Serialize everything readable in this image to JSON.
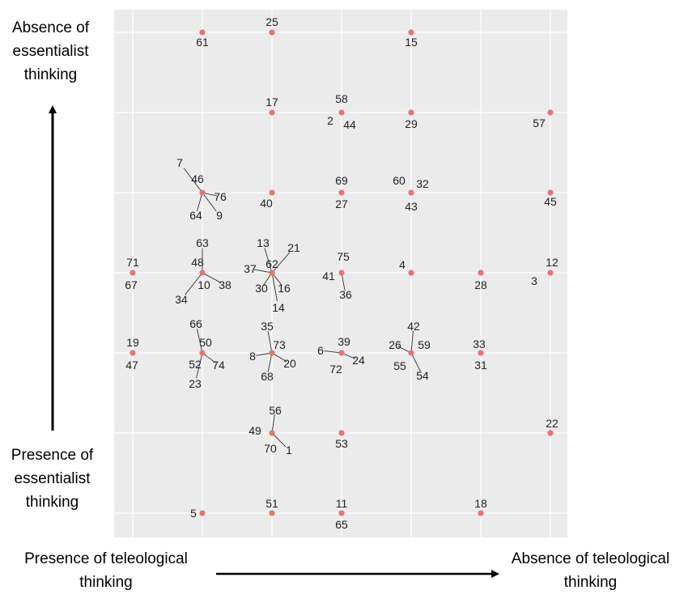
{
  "chart_data": {
    "type": "scatter",
    "grid": true,
    "xlim": [
      0.7,
      7.2
    ],
    "ylim": [
      0.7,
      7.3
    ],
    "axis_labels": {
      "y_top": [
        "Absence of",
        "essentialist",
        "thinking"
      ],
      "y_bottom": [
        "Presence of",
        "essentialist",
        "thinking"
      ],
      "x_left": [
        "Presence of teleological",
        "thinking"
      ],
      "x_right": [
        "Absence of teleological",
        "thinking"
      ]
    },
    "point_color": "#e8756b",
    "arrow_color": "#000000",
    "points": [
      {
        "x": 2,
        "y": 7,
        "labels": [
          {
            "text": "61",
            "dx": 0,
            "dy": 17
          }
        ]
      },
      {
        "x": 3,
        "y": 7,
        "labels": [
          {
            "text": "25",
            "dx": 0,
            "dy": -8
          }
        ]
      },
      {
        "x": 5,
        "y": 7,
        "labels": [
          {
            "text": "15",
            "dx": 0,
            "dy": 17
          }
        ]
      },
      {
        "x": 3,
        "y": 6,
        "labels": [
          {
            "text": "17",
            "dx": 0,
            "dy": -8
          }
        ]
      },
      {
        "x": 4,
        "y": 6,
        "labels": [
          {
            "text": "58",
            "dx": 0,
            "dy": -12
          },
          {
            "text": "2",
            "dx": -14,
            "dy": 15
          },
          {
            "text": "44",
            "dx": 10,
            "dy": 20
          }
        ]
      },
      {
        "x": 5,
        "y": 6,
        "labels": [
          {
            "text": "29",
            "dx": 0,
            "dy": 19
          }
        ]
      },
      {
        "x": 7,
        "y": 6,
        "labels": [
          {
            "text": "57",
            "dx": -14,
            "dy": 18
          }
        ]
      },
      {
        "x": 2,
        "y": 5,
        "labels": [
          {
            "text": "7",
            "dx": -28,
            "dy": -32
          },
          {
            "text": "46",
            "dx": -6,
            "dy": -12
          },
          {
            "text": "76",
            "dx": 22,
            "dy": 10
          },
          {
            "text": "64",
            "dx": -8,
            "dy": 33
          },
          {
            "text": "9",
            "dx": 21,
            "dy": 33
          }
        ]
      },
      {
        "x": 3,
        "y": 5,
        "labels": [
          {
            "text": "40",
            "dx": -7,
            "dy": 18
          }
        ]
      },
      {
        "x": 4,
        "y": 5,
        "labels": [
          {
            "text": "69",
            "dx": 0,
            "dy": -10
          },
          {
            "text": "27",
            "dx": 0,
            "dy": 19
          }
        ]
      },
      {
        "x": 5,
        "y": 5,
        "labels": [
          {
            "text": "60",
            "dx": -15,
            "dy": -10
          },
          {
            "text": "32",
            "dx": 14,
            "dy": -6
          },
          {
            "text": "43",
            "dx": 0,
            "dy": 22
          }
        ]
      },
      {
        "x": 7,
        "y": 5,
        "labels": [
          {
            "text": "45",
            "dx": 0,
            "dy": 16
          }
        ]
      },
      {
        "x": 1,
        "y": 4,
        "labels": [
          {
            "text": "71",
            "dx": 0,
            "dy": -8
          },
          {
            "text": "67",
            "dx": -2,
            "dy": 20
          }
        ]
      },
      {
        "x": 2,
        "y": 4,
        "labels": [
          {
            "text": "63",
            "dx": 0,
            "dy": -32
          },
          {
            "text": "48",
            "dx": -6,
            "dy": -8
          },
          {
            "text": "10",
            "dx": 2,
            "dy": 20
          },
          {
            "text": "38",
            "dx": 28,
            "dy": 20
          },
          {
            "text": "34",
            "dx": -26,
            "dy": 38
          }
        ]
      },
      {
        "x": 3,
        "y": 4,
        "labels": [
          {
            "text": "13",
            "dx": -11,
            "dy": -32
          },
          {
            "text": "21",
            "dx": 27,
            "dy": -26
          },
          {
            "text": "37",
            "dx": -27,
            "dy": 0
          },
          {
            "text": "62",
            "dx": 0,
            "dy": -6
          },
          {
            "text": "30",
            "dx": -13,
            "dy": 24
          },
          {
            "text": "16",
            "dx": 15,
            "dy": 24
          },
          {
            "text": "14",
            "dx": 8,
            "dy": 48
          }
        ]
      },
      {
        "x": 4,
        "y": 4,
        "labels": [
          {
            "text": "75",
            "dx": 2,
            "dy": -15
          },
          {
            "text": "41",
            "dx": -16,
            "dy": 9
          },
          {
            "text": "36",
            "dx": 5,
            "dy": 32
          }
        ]
      },
      {
        "x": 5,
        "y": 4,
        "labels": [
          {
            "text": "4",
            "dx": -11,
            "dy": -5
          }
        ]
      },
      {
        "x": 6,
        "y": 4,
        "labels": [
          {
            "text": "28",
            "dx": 0,
            "dy": 20
          }
        ]
      },
      {
        "x": 7,
        "y": 4,
        "labels": [
          {
            "text": "12",
            "dx": 2,
            "dy": -8
          },
          {
            "text": "3",
            "dx": -20,
            "dy": 15
          }
        ]
      },
      {
        "x": 1,
        "y": 3,
        "labels": [
          {
            "text": "19",
            "dx": 0,
            "dy": -8
          },
          {
            "text": "47",
            "dx": -1,
            "dy": 20
          }
        ]
      },
      {
        "x": 2,
        "y": 3,
        "labels": [
          {
            "text": "66",
            "dx": -8,
            "dy": -31
          },
          {
            "text": "50",
            "dx": 4,
            "dy": -8
          },
          {
            "text": "52",
            "dx": -9,
            "dy": 19
          },
          {
            "text": "74",
            "dx": 20,
            "dy": 20
          },
          {
            "text": "23",
            "dx": -9,
            "dy": 43
          }
        ]
      },
      {
        "x": 3,
        "y": 3,
        "labels": [
          {
            "text": "35",
            "dx": -6,
            "dy": -28
          },
          {
            "text": "73",
            "dx": 9,
            "dy": -5
          },
          {
            "text": "8",
            "dx": -24,
            "dy": 9
          },
          {
            "text": "20",
            "dx": 22,
            "dy": 18
          },
          {
            "text": "68",
            "dx": -6,
            "dy": 34
          }
        ]
      },
      {
        "x": 4,
        "y": 3,
        "labels": [
          {
            "text": "39",
            "dx": 3,
            "dy": -9
          },
          {
            "text": "6",
            "dx": -26,
            "dy": 2
          },
          {
            "text": "24",
            "dx": 21,
            "dy": 14
          },
          {
            "text": "72",
            "dx": -7,
            "dy": 25
          }
        ]
      },
      {
        "x": 5,
        "y": 3,
        "labels": [
          {
            "text": "42",
            "dx": 3,
            "dy": -28
          },
          {
            "text": "26",
            "dx": -20,
            "dy": -5
          },
          {
            "text": "59",
            "dx": 16,
            "dy": -5
          },
          {
            "text": "55",
            "dx": -14,
            "dy": 21
          },
          {
            "text": "54",
            "dx": 14,
            "dy": 33
          }
        ]
      },
      {
        "x": 6,
        "y": 3,
        "labels": [
          {
            "text": "33",
            "dx": -2,
            "dy": -6
          },
          {
            "text": "31",
            "dx": 0,
            "dy": 20
          }
        ]
      },
      {
        "x": 3,
        "y": 2,
        "labels": [
          {
            "text": "56",
            "dx": 4,
            "dy": -23
          },
          {
            "text": "49",
            "dx": -21,
            "dy": 2
          },
          {
            "text": "70",
            "dx": -2,
            "dy": 24
          },
          {
            "text": "1",
            "dx": 21,
            "dy": 26
          }
        ]
      },
      {
        "x": 4,
        "y": 2,
        "labels": [
          {
            "text": "53",
            "dx": 0,
            "dy": 18
          }
        ]
      },
      {
        "x": 7,
        "y": 2,
        "labels": [
          {
            "text": "22",
            "dx": 2,
            "dy": -7
          }
        ]
      },
      {
        "x": 2,
        "y": 1,
        "labels": [
          {
            "text": "5",
            "dx": -11,
            "dy": 5
          }
        ]
      },
      {
        "x": 3,
        "y": 1,
        "labels": [
          {
            "text": "51",
            "dx": 0,
            "dy": -7
          }
        ]
      },
      {
        "x": 4,
        "y": 1,
        "labels": [
          {
            "text": "11",
            "dx": 0,
            "dy": -7
          },
          {
            "text": "65",
            "dx": 0,
            "dy": 19
          }
        ]
      },
      {
        "x": 6,
        "y": 1,
        "labels": [
          {
            "text": "18",
            "dx": 0,
            "dy": -7
          }
        ]
      }
    ]
  }
}
